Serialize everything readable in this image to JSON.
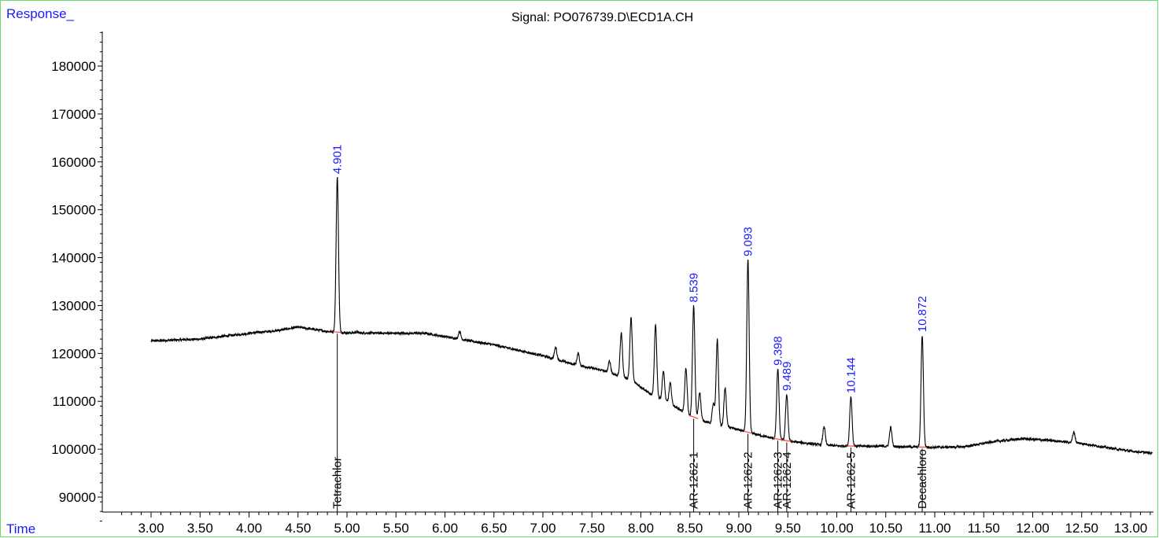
{
  "chart_data": {
    "type": "line",
    "title": "Signal: PO076739.D\\ECD1A.CH",
    "ylabel": "Response_",
    "xlabel": "Time",
    "xlim": [
      2.62,
      13.22
    ],
    "ylim": [
      85000,
      188000
    ],
    "y_ticks": [
      90000,
      100000,
      110000,
      120000,
      130000,
      140000,
      150000,
      160000,
      170000,
      180000
    ],
    "x_ticks": [
      3.0,
      3.5,
      4.0,
      4.5,
      5.0,
      5.5,
      6.0,
      6.5,
      7.0,
      7.5,
      8.0,
      8.5,
      9.0,
      9.5,
      10.0,
      10.5,
      11.0,
      11.5,
      12.0,
      12.5,
      13.0
    ],
    "x_tick_labels": [
      "3.00",
      "3.50",
      "4.00",
      "4.50",
      "5.00",
      "5.50",
      "6.00",
      "6.50",
      "7.00",
      "7.50",
      "8.00",
      "8.50",
      "9.00",
      "9.50",
      "10.00",
      "10.50",
      "11.00",
      "11.50",
      "12.00",
      "12.50",
      "13.00"
    ],
    "y_tick_labels": [
      "90000",
      "100000",
      "110000",
      "120000",
      "130000",
      "140000",
      "150000",
      "160000",
      "170000",
      "180000"
    ],
    "baseline_points": [
      [
        3.0,
        122600
      ],
      [
        3.5,
        123000
      ],
      [
        4.0,
        124200
      ],
      [
        4.3,
        124800
      ],
      [
        4.5,
        125500
      ],
      [
        4.8,
        124600
      ],
      [
        5.0,
        124300
      ],
      [
        5.5,
        124200
      ],
      [
        5.8,
        124200
      ],
      [
        6.0,
        123500
      ],
      [
        6.5,
        121800
      ],
      [
        7.0,
        119500
      ],
      [
        7.3,
        117800
      ],
      [
        7.6,
        116500
      ],
      [
        7.9,
        114500
      ],
      [
        8.1,
        111500
      ],
      [
        8.3,
        109500
      ],
      [
        8.5,
        107000
      ],
      [
        8.7,
        105500
      ],
      [
        8.9,
        104600
      ],
      [
        9.1,
        103500
      ],
      [
        9.3,
        102500
      ],
      [
        9.5,
        101700
      ],
      [
        9.8,
        101000
      ],
      [
        10.0,
        100700
      ],
      [
        10.5,
        100600
      ],
      [
        11.0,
        100400
      ],
      [
        11.3,
        100500
      ],
      [
        11.6,
        101600
      ],
      [
        11.9,
        102200
      ],
      [
        12.2,
        101800
      ],
      [
        12.5,
        101200
      ],
      [
        12.8,
        100200
      ],
      [
        13.0,
        99600
      ],
      [
        13.22,
        99200
      ]
    ],
    "peaks": [
      {
        "rt": 4.901,
        "height": 156800,
        "label": "4.901",
        "compound": "Tetrachlor",
        "integrated": true
      },
      {
        "rt": 5.1,
        "height": 124500,
        "label": "",
        "compound": "",
        "integrated": false
      },
      {
        "rt": 6.15,
        "height": 124600,
        "label": "",
        "compound": "",
        "integrated": false
      },
      {
        "rt": 7.13,
        "height": 121300,
        "label": "",
        "compound": "",
        "integrated": false
      },
      {
        "rt": 7.36,
        "height": 120000,
        "label": "",
        "compound": "",
        "integrated": false
      },
      {
        "rt": 7.68,
        "height": 118400,
        "label": "",
        "compound": "",
        "integrated": false
      },
      {
        "rt": 7.8,
        "height": 124300,
        "label": "",
        "compound": "",
        "integrated": false
      },
      {
        "rt": 7.9,
        "height": 127400,
        "label": "",
        "compound": "",
        "integrated": false
      },
      {
        "rt": 8.15,
        "height": 125900,
        "label": "",
        "compound": "",
        "integrated": false
      },
      {
        "rt": 8.23,
        "height": 116300,
        "label": "",
        "compound": "",
        "integrated": false
      },
      {
        "rt": 8.3,
        "height": 113800,
        "label": "",
        "compound": "",
        "integrated": false
      },
      {
        "rt": 8.46,
        "height": 116800,
        "label": "",
        "compound": "",
        "integrated": false
      },
      {
        "rt": 8.539,
        "height": 130000,
        "label": "8.539",
        "compound": "AR-1262-1",
        "integrated": true
      },
      {
        "rt": 8.6,
        "height": 111900,
        "label": "",
        "compound": "",
        "integrated": false
      },
      {
        "rt": 8.74,
        "height": 109500,
        "label": "",
        "compound": "",
        "integrated": false
      },
      {
        "rt": 8.78,
        "height": 122900,
        "label": "",
        "compound": "",
        "integrated": false
      },
      {
        "rt": 8.86,
        "height": 112800,
        "label": "",
        "compound": "",
        "integrated": false
      },
      {
        "rt": 9.093,
        "height": 139600,
        "label": "9.093",
        "compound": "AR-1262-2",
        "integrated": true
      },
      {
        "rt": 9.398,
        "height": 116800,
        "label": "9.398",
        "compound": "AR-1262-3",
        "integrated": true
      },
      {
        "rt": 9.489,
        "height": 111500,
        "label": "9.489",
        "compound": "AR-1262-4",
        "integrated": true
      },
      {
        "rt": 9.87,
        "height": 104800,
        "label": "",
        "compound": "",
        "integrated": false
      },
      {
        "rt": 10.144,
        "height": 111000,
        "label": "10.144",
        "compound": "AR-1262-5",
        "integrated": true
      },
      {
        "rt": 10.55,
        "height": 104600,
        "label": "",
        "compound": "",
        "integrated": false
      },
      {
        "rt": 10.872,
        "height": 123800,
        "label": "10.872",
        "compound": "Decachloro",
        "integrated": true
      },
      {
        "rt": 12.42,
        "height": 103600,
        "label": "",
        "compound": "",
        "integrated": false
      }
    ],
    "colors": {
      "trace": "#000000",
      "peak_label": "#1a1aff",
      "baseline_mark": "#ff4040",
      "frame": "#66dd66",
      "axis_title": "#1a1aff"
    }
  }
}
